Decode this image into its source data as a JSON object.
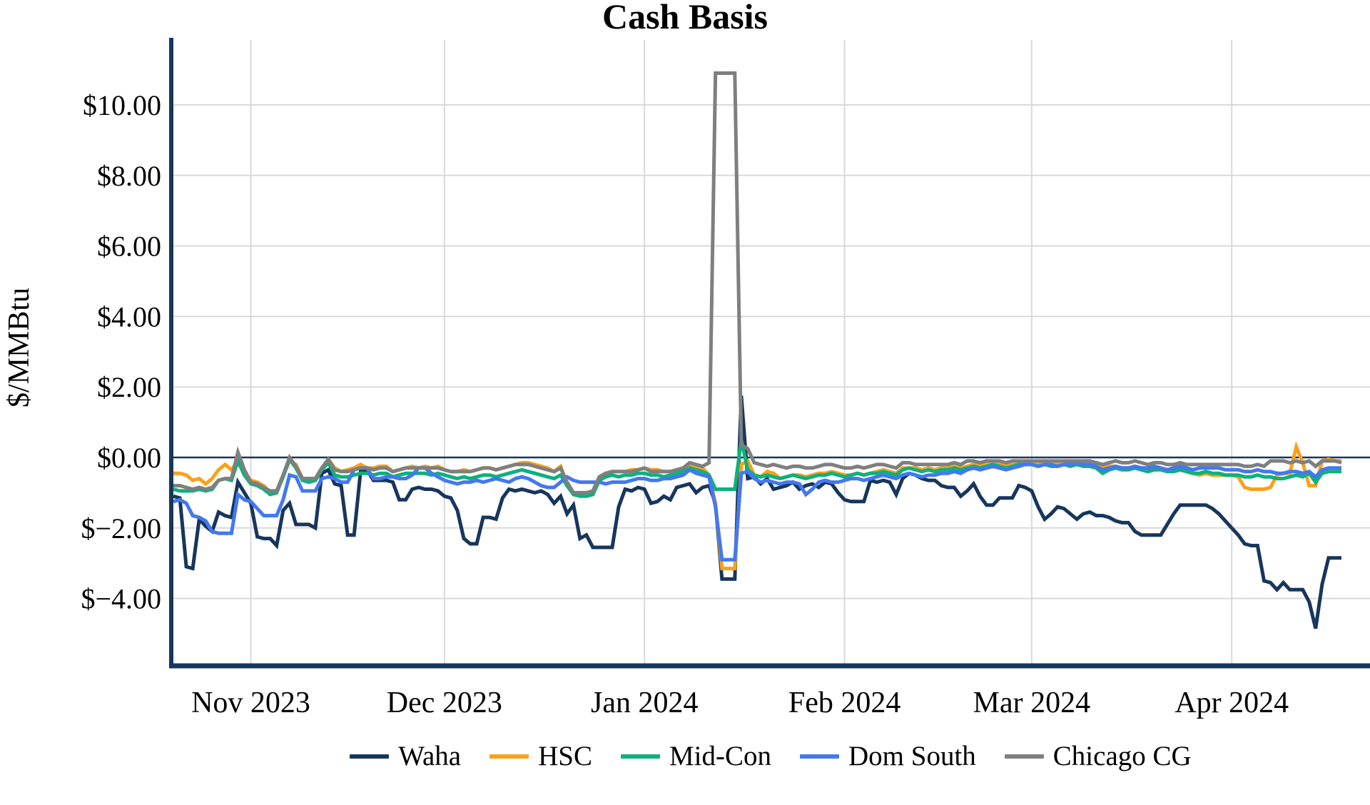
{
  "chart_data": {
    "type": "line",
    "title": "Cash Basis",
    "ylabel": "$/MMBtu",
    "xlabel": "",
    "grid": true,
    "legend_position": "bottom",
    "ylim": [
      -5.95,
      11.85
    ],
    "y_ticks": [
      {
        "value": 10,
        "label": "$10.00"
      },
      {
        "value": 8,
        "label": "$8.00"
      },
      {
        "value": 6,
        "label": "$6.00"
      },
      {
        "value": 4,
        "label": "$4.00"
      },
      {
        "value": 2,
        "label": "$2.00"
      },
      {
        "value": 0,
        "label": "$0.00"
      },
      {
        "value": -2,
        "label": "$−2.00"
      },
      {
        "value": -4,
        "label": "$−4.00"
      }
    ],
    "zero_line_value": 0,
    "x_start_date": "2023-10-20",
    "x_end_date": "2024-04-18",
    "x_ticks": [
      {
        "day": 12,
        "label": "Nov 2023"
      },
      {
        "day": 42,
        "label": "Dec 2023"
      },
      {
        "day": 73,
        "label": "Jan 2024"
      },
      {
        "day": 104,
        "label": "Feb 2024"
      },
      {
        "day": 133,
        "label": "Mar 2024"
      },
      {
        "day": 164,
        "label": "Apr 2024"
      }
    ],
    "colors": {
      "axis": "#17365D",
      "gridline": "#D9D9D9",
      "background": "#FFFFFF"
    },
    "series": [
      {
        "name": "Waha",
        "color": "#17365D",
        "values": [
          -1.1,
          -1.15,
          -3.1,
          -3.15,
          -1.75,
          -1.95,
          -2.1,
          -1.55,
          -1.65,
          -1.7,
          -0.7,
          -1.0,
          -1.3,
          -2.25,
          -2.3,
          -2.3,
          -2.5,
          -1.5,
          -1.3,
          -1.9,
          -1.9,
          -1.9,
          -2.0,
          -0.45,
          -0.35,
          -0.75,
          -0.8,
          -2.2,
          -2.2,
          -0.4,
          -0.35,
          -0.65,
          -0.65,
          -0.65,
          -0.7,
          -1.2,
          -1.2,
          -0.9,
          -0.85,
          -0.9,
          -0.9,
          -0.95,
          -1.1,
          -1.15,
          -1.5,
          -2.3,
          -2.45,
          -2.45,
          -1.7,
          -1.7,
          -1.75,
          -1.15,
          -0.9,
          -0.95,
          -0.9,
          -0.95,
          -1.0,
          -0.95,
          -1.05,
          -1.3,
          -1.1,
          -1.6,
          -1.35,
          -2.3,
          -2.2,
          -2.55,
          -2.55,
          -2.55,
          -2.55,
          -1.4,
          -0.9,
          -0.95,
          -0.85,
          -0.9,
          -1.3,
          -1.25,
          -1.1,
          -1.2,
          -0.85,
          -0.8,
          -0.75,
          -1.0,
          -0.85,
          -0.8,
          -1.3,
          -3.45,
          -3.45,
          -3.45,
          1.75,
          -0.6,
          -0.55,
          -0.75,
          -0.6,
          -0.9,
          -0.85,
          -0.8,
          -0.7,
          -0.9,
          -0.8,
          -0.75,
          -0.85,
          -0.7,
          -0.75,
          -1.0,
          -1.2,
          -1.25,
          -1.25,
          -1.25,
          -0.65,
          -0.7,
          -0.65,
          -0.7,
          -1.05,
          -0.6,
          -0.45,
          -0.5,
          -0.6,
          -0.65,
          -0.65,
          -0.8,
          -0.85,
          -0.85,
          -1.1,
          -0.95,
          -0.75,
          -1.1,
          -1.35,
          -1.35,
          -1.15,
          -1.15,
          -1.15,
          -0.8,
          -0.85,
          -0.95,
          -1.4,
          -1.75,
          -1.6,
          -1.4,
          -1.45,
          -1.6,
          -1.75,
          -1.6,
          -1.55,
          -1.65,
          -1.65,
          -1.7,
          -1.8,
          -1.85,
          -1.85,
          -2.1,
          -2.2,
          -2.2,
          -2.2,
          -2.2,
          -1.9,
          -1.6,
          -1.35,
          -1.35,
          -1.35,
          -1.35,
          -1.35,
          -1.45,
          -1.6,
          -1.8,
          -2.0,
          -2.2,
          -2.45,
          -2.5,
          -2.5,
          -3.5,
          -3.55,
          -3.75,
          -3.55,
          -3.75,
          -3.75,
          -3.75,
          -4.1,
          -4.85,
          -3.6,
          -2.85,
          -2.85,
          -2.85
        ]
      },
      {
        "name": "HSC",
        "color": "#F9A11B",
        "values": [
          -0.45,
          -0.45,
          -0.5,
          -0.65,
          -0.6,
          -0.75,
          -0.6,
          -0.35,
          -0.2,
          -0.35,
          -0.1,
          -0.45,
          -0.65,
          -0.7,
          -0.8,
          -1.0,
          -1.0,
          -0.5,
          -0.1,
          -0.2,
          -0.6,
          -0.6,
          -0.6,
          -0.3,
          -0.05,
          -0.3,
          -0.4,
          -0.35,
          -0.3,
          -0.2,
          -0.3,
          -0.3,
          -0.25,
          -0.25,
          -0.4,
          -0.35,
          -0.3,
          -0.25,
          -0.3,
          -0.25,
          -0.3,
          -0.25,
          -0.35,
          -0.4,
          -0.4,
          -0.35,
          -0.4,
          -0.35,
          -0.3,
          -0.3,
          -0.35,
          -0.3,
          -0.25,
          -0.2,
          -0.15,
          -0.15,
          -0.2,
          -0.25,
          -0.3,
          -0.4,
          -0.25,
          -0.75,
          -1.05,
          -1.05,
          -1.05,
          -1.0,
          -0.55,
          -0.45,
          -0.4,
          -0.4,
          -0.4,
          -0.35,
          -0.35,
          -0.3,
          -0.35,
          -0.35,
          -0.4,
          -0.4,
          -0.35,
          -0.3,
          -0.2,
          -0.25,
          -0.3,
          -0.5,
          -1.3,
          -3.15,
          -3.15,
          -3.15,
          -0.2,
          -0.1,
          -0.5,
          -0.55,
          -0.4,
          -0.45,
          -0.6,
          -0.55,
          -0.5,
          -0.5,
          -0.55,
          -0.5,
          -0.45,
          -0.45,
          -0.4,
          -0.45,
          -0.5,
          -0.5,
          -0.45,
          -0.5,
          -0.45,
          -0.4,
          -0.35,
          -0.4,
          -0.45,
          -0.3,
          -0.3,
          -0.3,
          -0.35,
          -0.3,
          -0.35,
          -0.3,
          -0.3,
          -0.25,
          -0.3,
          -0.25,
          -0.2,
          -0.25,
          -0.2,
          -0.2,
          -0.2,
          -0.25,
          -0.2,
          -0.2,
          -0.15,
          -0.15,
          -0.2,
          -0.15,
          -0.2,
          -0.2,
          -0.15,
          -0.2,
          -0.15,
          -0.2,
          -0.2,
          -0.25,
          -0.3,
          -0.25,
          -0.25,
          -0.3,
          -0.3,
          -0.25,
          -0.3,
          -0.35,
          -0.35,
          -0.3,
          -0.35,
          -0.35,
          -0.3,
          -0.4,
          -0.45,
          -0.5,
          -0.45,
          -0.5,
          -0.5,
          -0.5,
          -0.5,
          -0.55,
          -0.85,
          -0.9,
          -0.9,
          -0.9,
          -0.85,
          -0.5,
          -0.45,
          -0.45,
          0.3,
          -0.15,
          -0.8,
          -0.8,
          -0.1,
          -0.05,
          -0.1,
          -0.1
        ]
      },
      {
        "name": "Mid-Con",
        "color": "#0DB17D",
        "values": [
          -0.9,
          -0.95,
          -0.95,
          -0.95,
          -0.9,
          -0.95,
          -0.9,
          -0.65,
          -0.6,
          -0.65,
          -0.1,
          -0.5,
          -0.75,
          -0.8,
          -0.9,
          -1.05,
          -1.0,
          -0.55,
          -0.05,
          -0.3,
          -0.65,
          -0.7,
          -0.65,
          -0.35,
          -0.15,
          -0.5,
          -0.55,
          -0.55,
          -0.5,
          -0.45,
          -0.45,
          -0.5,
          -0.45,
          -0.45,
          -0.55,
          -0.5,
          -0.45,
          -0.45,
          -0.45,
          -0.45,
          -0.5,
          -0.45,
          -0.5,
          -0.55,
          -0.6,
          -0.55,
          -0.6,
          -0.55,
          -0.5,
          -0.5,
          -0.55,
          -0.5,
          -0.45,
          -0.4,
          -0.35,
          -0.4,
          -0.45,
          -0.5,
          -0.55,
          -0.6,
          -0.5,
          -0.8,
          -1.05,
          -1.1,
          -1.1,
          -1.05,
          -0.65,
          -0.55,
          -0.5,
          -0.55,
          -0.5,
          -0.5,
          -0.45,
          -0.45,
          -0.5,
          -0.5,
          -0.55,
          -0.5,
          -0.45,
          -0.4,
          -0.3,
          -0.35,
          -0.4,
          -0.5,
          -0.9,
          -0.9,
          -0.9,
          -0.9,
          0.5,
          -0.35,
          -0.5,
          -0.55,
          -0.5,
          -0.55,
          -0.6,
          -0.55,
          -0.5,
          -0.55,
          -0.6,
          -0.55,
          -0.5,
          -0.5,
          -0.45,
          -0.5,
          -0.55,
          -0.5,
          -0.45,
          -0.5,
          -0.45,
          -0.45,
          -0.4,
          -0.45,
          -0.5,
          -0.35,
          -0.3,
          -0.35,
          -0.4,
          -0.35,
          -0.4,
          -0.35,
          -0.35,
          -0.3,
          -0.35,
          -0.3,
          -0.25,
          -0.3,
          -0.25,
          -0.2,
          -0.25,
          -0.3,
          -0.25,
          -0.2,
          -0.2,
          -0.2,
          -0.25,
          -0.2,
          -0.25,
          -0.25,
          -0.2,
          -0.25,
          -0.2,
          -0.25,
          -0.25,
          -0.3,
          -0.45,
          -0.35,
          -0.3,
          -0.35,
          -0.35,
          -0.3,
          -0.35,
          -0.4,
          -0.35,
          -0.35,
          -0.4,
          -0.4,
          -0.35,
          -0.4,
          -0.45,
          -0.45,
          -0.4,
          -0.45,
          -0.45,
          -0.5,
          -0.5,
          -0.5,
          -0.55,
          -0.55,
          -0.5,
          -0.55,
          -0.55,
          -0.6,
          -0.6,
          -0.55,
          -0.5,
          -0.55,
          -0.45,
          -0.7,
          -0.45,
          -0.4,
          -0.4,
          -0.4
        ]
      },
      {
        "name": "Dom South",
        "color": "#4478F0",
        "values": [
          -1.25,
          -1.2,
          -1.3,
          -1.65,
          -1.7,
          -1.8,
          -2.1,
          -2.15,
          -2.15,
          -2.15,
          -1.05,
          -1.2,
          -1.25,
          -1.45,
          -1.65,
          -1.65,
          -1.65,
          -1.2,
          -0.5,
          -0.55,
          -0.95,
          -0.95,
          -0.95,
          -0.6,
          -0.55,
          -0.6,
          -0.7,
          -0.7,
          -0.35,
          -0.3,
          -0.3,
          -0.6,
          -0.6,
          -0.55,
          -0.55,
          -0.6,
          -0.6,
          -0.5,
          -0.3,
          -0.3,
          -0.45,
          -0.55,
          -0.65,
          -0.7,
          -0.75,
          -0.7,
          -0.7,
          -0.65,
          -0.7,
          -0.65,
          -0.6,
          -0.65,
          -0.7,
          -0.6,
          -0.55,
          -0.6,
          -0.7,
          -0.8,
          -0.85,
          -0.85,
          -0.7,
          -0.55,
          -0.65,
          -0.7,
          -0.7,
          -0.7,
          -0.7,
          -0.75,
          -0.7,
          -0.7,
          -0.7,
          -0.65,
          -0.6,
          -0.6,
          -0.65,
          -0.65,
          -0.6,
          -0.6,
          -0.55,
          -0.5,
          -0.35,
          -0.45,
          -0.5,
          -0.55,
          -1.4,
          -2.9,
          -2.9,
          -2.9,
          -0.45,
          -0.4,
          -0.6,
          -0.7,
          -0.65,
          -0.7,
          -0.75,
          -0.7,
          -0.7,
          -0.75,
          -1.05,
          -0.9,
          -0.7,
          -0.65,
          -0.7,
          -0.7,
          -0.65,
          -0.6,
          -0.6,
          -0.65,
          -0.6,
          -0.55,
          -0.5,
          -0.55,
          -0.6,
          -0.5,
          -0.45,
          -0.5,
          -0.55,
          -0.5,
          -0.5,
          -0.45,
          -0.45,
          -0.4,
          -0.45,
          -0.35,
          -0.3,
          -0.35,
          -0.3,
          -0.25,
          -0.3,
          -0.35,
          -0.3,
          -0.25,
          -0.2,
          -0.2,
          -0.25,
          -0.2,
          -0.2,
          -0.25,
          -0.2,
          -0.2,
          -0.15,
          -0.2,
          -0.2,
          -0.25,
          -0.35,
          -0.3,
          -0.25,
          -0.3,
          -0.3,
          -0.25,
          -0.3,
          -0.3,
          -0.25,
          -0.3,
          -0.35,
          -0.3,
          -0.25,
          -0.3,
          -0.35,
          -0.3,
          -0.3,
          -0.3,
          -0.3,
          -0.35,
          -0.35,
          -0.35,
          -0.4,
          -0.4,
          -0.35,
          -0.4,
          -0.4,
          -0.45,
          -0.45,
          -0.4,
          -0.4,
          -0.45,
          -0.4,
          -0.55,
          -0.35,
          -0.3,
          -0.3,
          -0.3
        ]
      },
      {
        "name": "Chicago CG",
        "color": "#7F7F7F",
        "values": [
          -0.8,
          -0.8,
          -0.85,
          -0.9,
          -0.85,
          -0.9,
          -0.85,
          -0.65,
          -0.6,
          -0.6,
          0.15,
          -0.35,
          -0.7,
          -0.75,
          -0.85,
          -0.95,
          -0.95,
          -0.5,
          0.0,
          -0.25,
          -0.6,
          -0.6,
          -0.6,
          -0.3,
          -0.05,
          -0.35,
          -0.4,
          -0.4,
          -0.35,
          -0.3,
          -0.3,
          -0.35,
          -0.3,
          -0.3,
          -0.4,
          -0.35,
          -0.3,
          -0.3,
          -0.3,
          -0.3,
          -0.3,
          -0.3,
          -0.35,
          -0.4,
          -0.4,
          -0.4,
          -0.4,
          -0.35,
          -0.3,
          -0.3,
          -0.35,
          -0.3,
          -0.25,
          -0.2,
          -0.2,
          -0.2,
          -0.25,
          -0.3,
          -0.35,
          -0.4,
          -0.3,
          -0.7,
          -1.0,
          -1.0,
          -1.0,
          -0.95,
          -0.55,
          -0.45,
          -0.4,
          -0.4,
          -0.4,
          -0.4,
          -0.35,
          -0.3,
          -0.4,
          -0.4,
          -0.4,
          -0.4,
          -0.35,
          -0.3,
          -0.15,
          -0.2,
          -0.25,
          -0.15,
          10.9,
          10.9,
          10.9,
          10.9,
          0.35,
          0.25,
          -0.15,
          -0.2,
          -0.25,
          -0.2,
          -0.25,
          -0.3,
          -0.25,
          -0.25,
          -0.3,
          -0.3,
          -0.25,
          -0.2,
          -0.2,
          -0.25,
          -0.3,
          -0.3,
          -0.25,
          -0.3,
          -0.25,
          -0.2,
          -0.2,
          -0.25,
          -0.3,
          -0.15,
          -0.15,
          -0.2,
          -0.2,
          -0.2,
          -0.2,
          -0.2,
          -0.2,
          -0.15,
          -0.2,
          -0.1,
          -0.1,
          -0.15,
          -0.1,
          -0.1,
          -0.1,
          -0.15,
          -0.1,
          -0.1,
          -0.1,
          -0.1,
          -0.1,
          -0.1,
          -0.1,
          -0.1,
          -0.1,
          -0.1,
          -0.1,
          -0.1,
          -0.1,
          -0.15,
          -0.2,
          -0.15,
          -0.1,
          -0.15,
          -0.15,
          -0.1,
          -0.15,
          -0.2,
          -0.15,
          -0.15,
          -0.2,
          -0.2,
          -0.15,
          -0.2,
          -0.2,
          -0.2,
          -0.2,
          -0.2,
          -0.2,
          -0.2,
          -0.2,
          -0.2,
          -0.25,
          -0.25,
          -0.2,
          -0.25,
          -0.1,
          -0.1,
          -0.1,
          -0.15,
          -0.1,
          -0.15,
          -0.1,
          -0.25,
          -0.1,
          -0.1,
          -0.1,
          -0.15
        ]
      }
    ]
  }
}
